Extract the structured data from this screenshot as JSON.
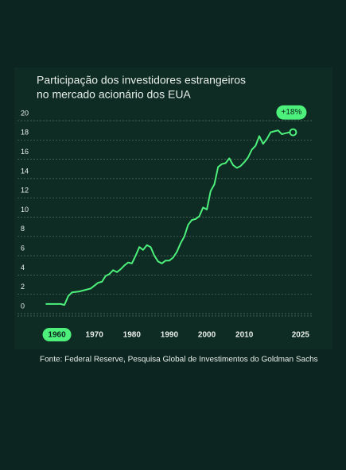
{
  "chart_data": {
    "type": "line",
    "title": [
      "Participação dos investidores estrangeiros",
      "no mercado acionário dos EUA"
    ],
    "annotation": "+18%",
    "source": "Fonte: Federal Reserve, Pesquisa Global de Investimentos do Goldman Sachs",
    "x": [
      1957,
      1959,
      1961,
      1962,
      1963,
      1964,
      1966,
      1968,
      1969,
      1971,
      1972,
      1973,
      1974,
      1975,
      1976,
      1977,
      1978,
      1979,
      1980,
      1981,
      1982,
      1983,
      1984,
      1985,
      1986,
      1987,
      1988,
      1989,
      1990,
      1991,
      1992,
      1993,
      1994,
      1995,
      1996,
      1997,
      1998,
      1999,
      2000,
      2001,
      2002,
      2003,
      2004,
      2005,
      2006,
      2007,
      2008,
      2009,
      2010,
      2011,
      2012,
      2013,
      2014,
      2015,
      2016,
      2017,
      2018,
      2019,
      2020,
      2021,
      2022,
      2023
    ],
    "series": [
      {
        "name": "Participação",
        "color": "#4cf07a",
        "values": [
          1.0,
          1.0,
          1.0,
          0.9,
          1.8,
          2.2,
          2.3,
          2.5,
          2.6,
          3.2,
          3.3,
          3.9,
          4.1,
          4.5,
          4.3,
          4.6,
          5.0,
          5.3,
          5.2,
          6.0,
          6.9,
          6.6,
          7.1,
          6.9,
          6.0,
          5.4,
          5.2,
          5.5,
          5.5,
          5.8,
          6.4,
          7.3,
          8.0,
          9.2,
          9.7,
          9.8,
          10.1,
          11.0,
          10.8,
          12.7,
          13.4,
          15.2,
          15.5,
          15.6,
          16.1,
          15.4,
          15.1,
          15.3,
          15.7,
          16.2,
          17.0,
          17.4,
          18.4,
          17.6,
          18.1,
          18.8,
          18.9,
          19.0,
          18.6,
          18.7,
          18.8,
          18.8
        ]
      }
    ],
    "xlim": [
      1955,
      2028
    ],
    "xticks": [
      1960,
      1970,
      1980,
      1990,
      2000,
      2010,
      2025
    ],
    "ylim": [
      0,
      20
    ],
    "yticks": [
      0,
      2,
      4,
      6,
      8,
      10,
      12,
      14,
      16,
      18,
      20
    ],
    "grid": true
  }
}
